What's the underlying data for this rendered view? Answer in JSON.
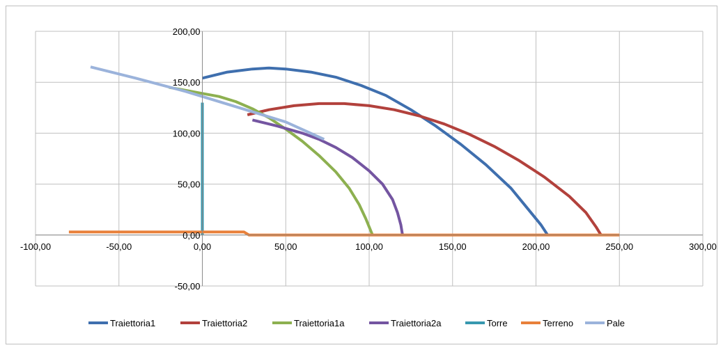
{
  "chart_data": {
    "type": "line",
    "title": "",
    "xlabel": "",
    "ylabel": "",
    "xlim": [
      -100,
      300
    ],
    "ylim": [
      -50,
      200
    ],
    "x_ticks": [
      -100,
      -50,
      0,
      50,
      100,
      150,
      200,
      250,
      300
    ],
    "x_tick_labels": [
      "-100,00",
      "-50,00",
      "0,00",
      "50,00",
      "100,00",
      "150,00",
      "200,00",
      "250,00",
      "300,00"
    ],
    "y_ticks": [
      -50,
      0,
      50,
      100,
      150,
      200
    ],
    "y_tick_labels": [
      "-50,00",
      "0,00",
      "50,00",
      "100,00",
      "150,00",
      "200,00"
    ],
    "grid": true,
    "legend_position": "bottom",
    "series": [
      {
        "name": "Traiettoria1",
        "color": "#3F6FAE",
        "points": [
          [
            0,
            154
          ],
          [
            15,
            160
          ],
          [
            30,
            163
          ],
          [
            40,
            164
          ],
          [
            50,
            163
          ],
          [
            65,
            160
          ],
          [
            80,
            155
          ],
          [
            95,
            147
          ],
          [
            110,
            137
          ],
          [
            125,
            123
          ],
          [
            140,
            107
          ],
          [
            155,
            89
          ],
          [
            170,
            69
          ],
          [
            185,
            46
          ],
          [
            195,
            26
          ],
          [
            203,
            10
          ],
          [
            207,
            0
          ]
        ]
      },
      {
        "name": "Traiettoria2",
        "color": "#B2413C",
        "points": [
          [
            27,
            118
          ],
          [
            40,
            123
          ],
          [
            55,
            127
          ],
          [
            70,
            129
          ],
          [
            85,
            129
          ],
          [
            100,
            127
          ],
          [
            115,
            123
          ],
          [
            130,
            117
          ],
          [
            145,
            109
          ],
          [
            160,
            99
          ],
          [
            175,
            87
          ],
          [
            190,
            73
          ],
          [
            205,
            57
          ],
          [
            220,
            38
          ],
          [
            230,
            22
          ],
          [
            236,
            8
          ],
          [
            239,
            0
          ]
        ]
      },
      {
        "name": "Traiettoria1a",
        "color": "#8DB050",
        "points": [
          [
            -20,
            145
          ],
          [
            -10,
            142
          ],
          [
            0,
            139
          ],
          [
            10,
            136
          ],
          [
            20,
            131
          ],
          [
            30,
            124
          ],
          [
            40,
            115
          ],
          [
            50,
            104
          ],
          [
            60,
            92
          ],
          [
            70,
            78
          ],
          [
            80,
            62
          ],
          [
            88,
            46
          ],
          [
            94,
            30
          ],
          [
            98,
            16
          ],
          [
            101,
            4
          ],
          [
            102,
            0
          ]
        ]
      },
      {
        "name": "Traiettoria2a",
        "color": "#7455A1",
        "points": [
          [
            30,
            113
          ],
          [
            45,
            107
          ],
          [
            60,
            100
          ],
          [
            70,
            94
          ],
          [
            80,
            86
          ],
          [
            90,
            76
          ],
          [
            100,
            63
          ],
          [
            108,
            50
          ],
          [
            114,
            35
          ],
          [
            117,
            22
          ],
          [
            119,
            10
          ],
          [
            120,
            0
          ]
        ]
      },
      {
        "name": "Torre",
        "color": "#3798AF",
        "points": [
          [
            0,
            0
          ],
          [
            0,
            130
          ]
        ]
      },
      {
        "name": "Terreno",
        "color": "#E8803A",
        "points": [
          [
            -80,
            3
          ],
          [
            25,
            3
          ],
          [
            28,
            0
          ],
          [
            250,
            0
          ]
        ]
      },
      {
        "name": "Pale",
        "color": "#9BB3DB",
        "points": [
          [
            -67,
            165
          ],
          [
            -40,
            154
          ],
          [
            -10,
            141
          ],
          [
            20,
            126
          ],
          [
            50,
            111
          ],
          [
            73,
            94
          ]
        ]
      }
    ]
  }
}
